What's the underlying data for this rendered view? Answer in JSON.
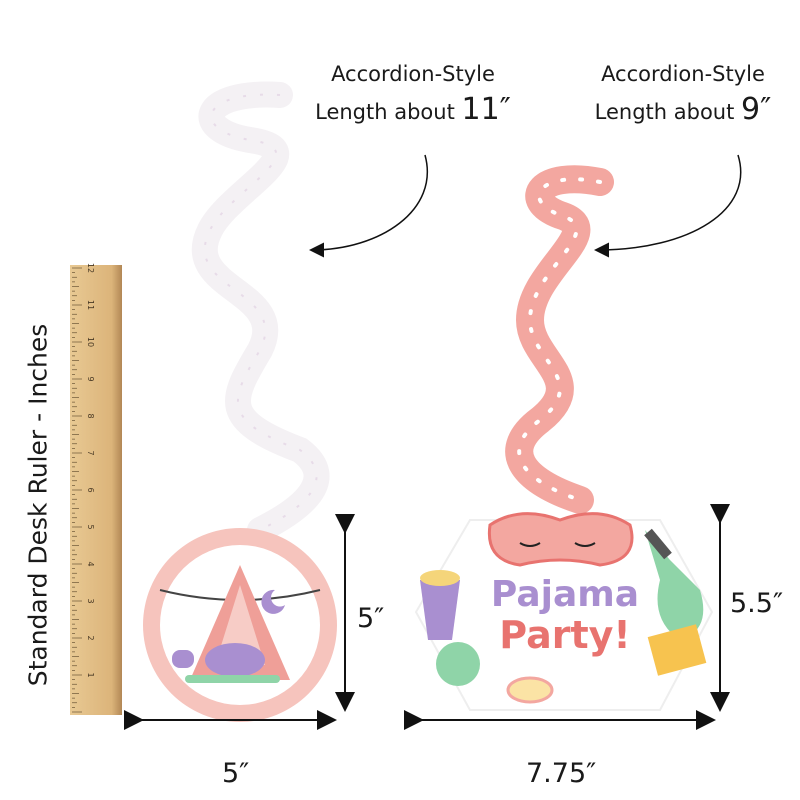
{
  "callouts": [
    {
      "line1": "Accordion-Style",
      "line2_prefix": "Length about ",
      "line2_value": "11″"
    },
    {
      "line1": "Accordion-Style",
      "line2_prefix": "Length about ",
      "line2_value": "9″"
    }
  ],
  "ruler": {
    "label": "Standard Desk Ruler - Inches",
    "numbers": [
      "1",
      "2",
      "3",
      "4",
      "5",
      "6",
      "7",
      "8",
      "9",
      "10",
      "11",
      "12"
    ]
  },
  "dimensions": {
    "circle_height": "5″",
    "circle_width": "5″",
    "hex_height": "5.5″",
    "hex_width": "7.75″"
  },
  "hex_sign": {
    "line1": "Pajama",
    "line2": "Party!"
  },
  "colors": {
    "pink": "#f3a7a0",
    "purple": "#a98fd0",
    "salmon": "#e8736f",
    "wood": "#e2bf86",
    "mint": "#8fd4a8"
  }
}
